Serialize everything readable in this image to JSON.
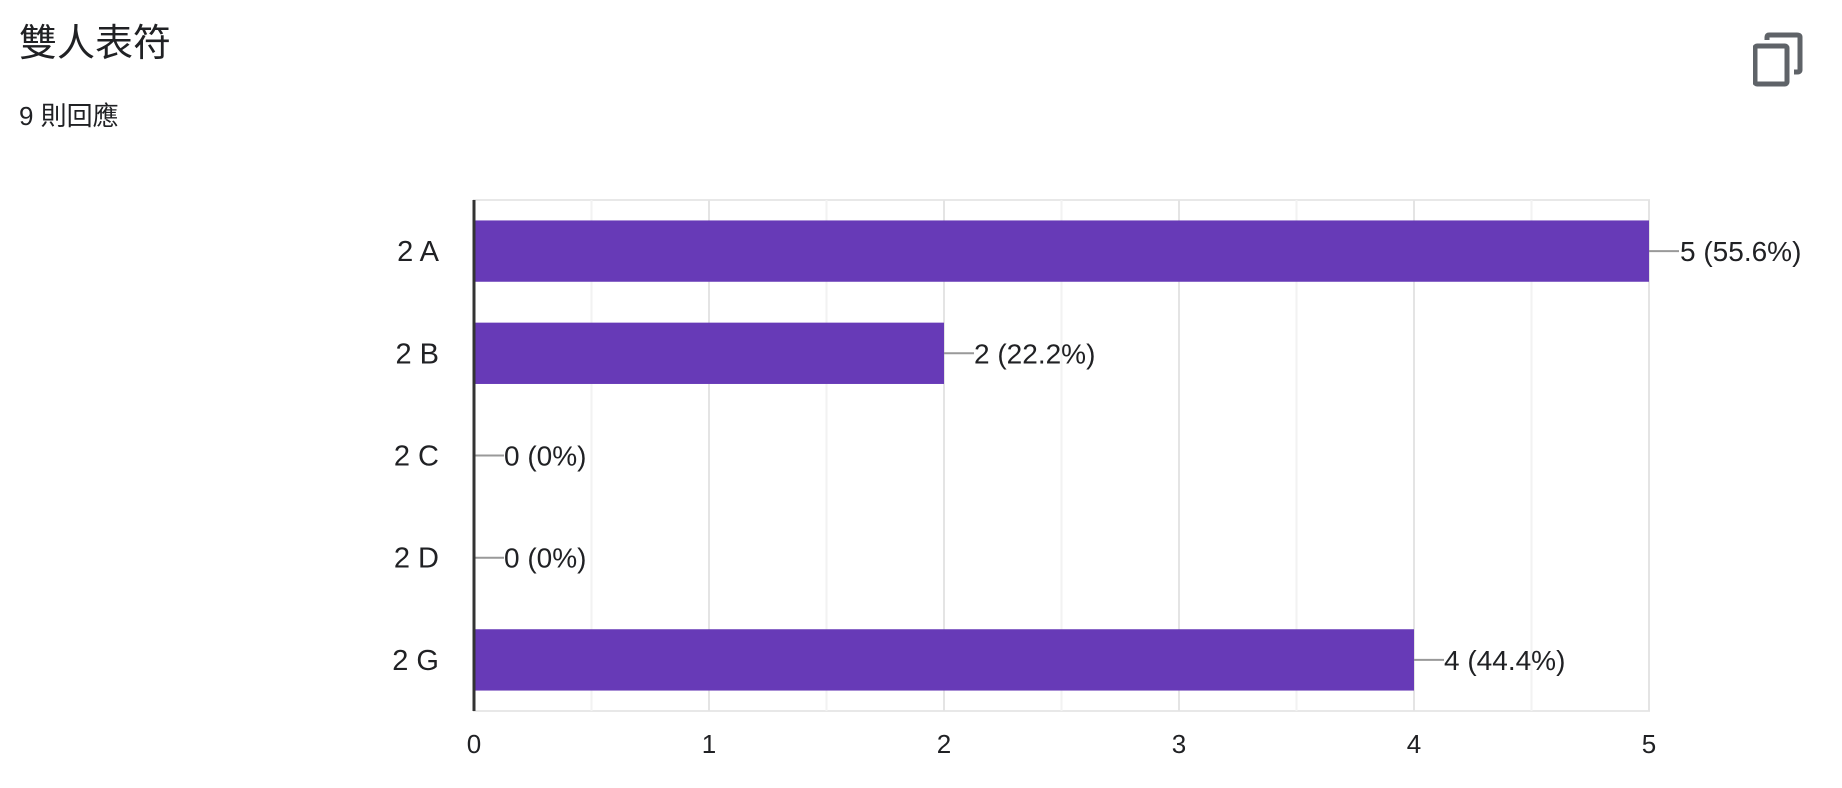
{
  "question": {
    "title": "雙人表符",
    "responses": "9 則回應",
    "copy_icon": "copy-icon"
  },
  "chart_data": {
    "type": "bar",
    "orientation": "horizontal",
    "categories": [
      "2 A",
      "2 B",
      "2 C",
      "2 D",
      "2 G"
    ],
    "values": [
      5,
      2,
      0,
      0,
      4
    ],
    "value_labels": [
      "5 (55.6%)",
      "2 (22.2%)",
      "0 (0%)",
      "0 (0%)",
      "4 (44.4%)"
    ],
    "xlim": [
      0,
      5
    ],
    "x_ticks": [
      "0",
      "1",
      "2",
      "3",
      "4",
      "5"
    ],
    "grid": true,
    "bar_color": "#673ab7"
  }
}
